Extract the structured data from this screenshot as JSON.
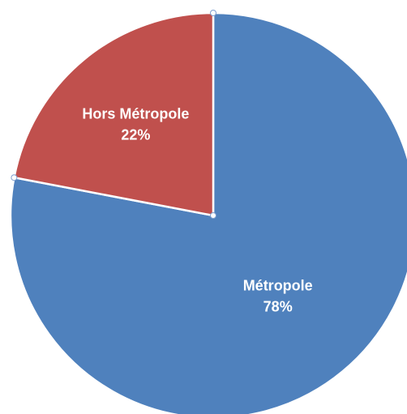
{
  "chart_data": {
    "type": "pie",
    "title": "",
    "start_angle_deg": 0,
    "direction": "clockwise",
    "slices": [
      {
        "label": "Métropole",
        "value": 78,
        "value_label": "78%",
        "color": "#4f81bd"
      },
      {
        "label": "Hors Métropole",
        "value": 22,
        "value_label": "22%",
        "color": "#c0504d"
      }
    ],
    "legend": "none",
    "grid": false
  }
}
